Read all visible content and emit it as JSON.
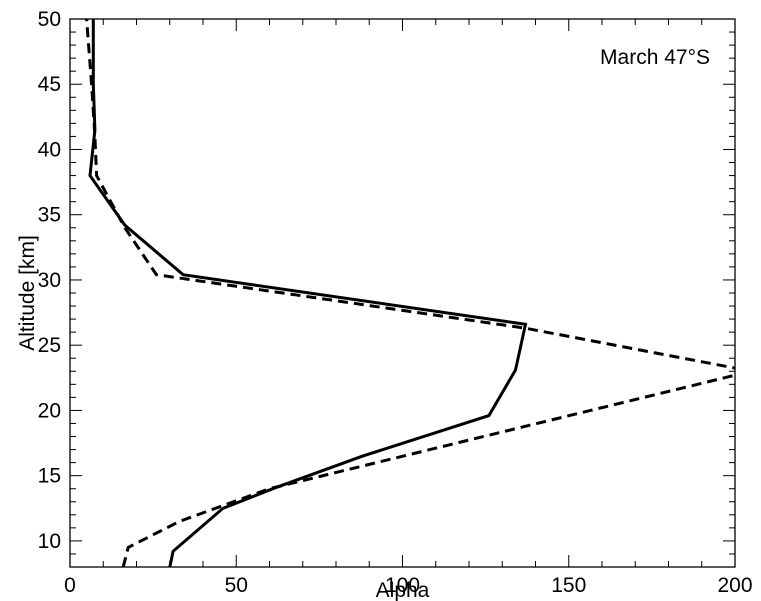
{
  "chart_data": {
    "type": "line",
    "title": "",
    "annotation": "March 47°S",
    "xlabel": "Alpha",
    "ylabel": "Altitude [km]",
    "xlim": [
      0,
      200
    ],
    "ylim": [
      8,
      50
    ],
    "x_ticks": [
      0,
      50,
      100,
      150,
      200
    ],
    "y_ticks": [
      10,
      15,
      20,
      25,
      30,
      35,
      40,
      45,
      50
    ],
    "x_minor_step": 10,
    "y_minor_step": 1,
    "grid": false,
    "legend": "none",
    "series": [
      {
        "style": "solid",
        "color": "#000000",
        "points": [
          [
            30,
            8
          ],
          [
            31,
            9.2
          ],
          [
            46,
            12.5
          ],
          [
            61,
            14
          ],
          [
            88,
            16.5
          ],
          [
            126,
            19.6
          ],
          [
            134,
            23.1
          ],
          [
            137,
            26.6
          ],
          [
            34,
            30.4
          ],
          [
            16.5,
            34.2
          ],
          [
            6,
            38
          ],
          [
            7.5,
            41.5
          ],
          [
            7,
            45
          ],
          [
            7,
            50
          ]
        ]
      },
      {
        "style": "dashed",
        "color": "#000000",
        "points": [
          [
            16,
            8
          ],
          [
            17.5,
            9.5
          ],
          [
            33,
            11.5
          ],
          [
            60,
            14
          ],
          [
            200,
            22.7
          ],
          [
            201,
            23.2
          ],
          [
            137,
            26.3
          ],
          [
            26,
            30.4
          ],
          [
            16.5,
            34
          ],
          [
            8,
            38
          ],
          [
            7.5,
            41
          ],
          [
            6.5,
            45
          ],
          [
            5,
            50
          ]
        ]
      }
    ]
  }
}
